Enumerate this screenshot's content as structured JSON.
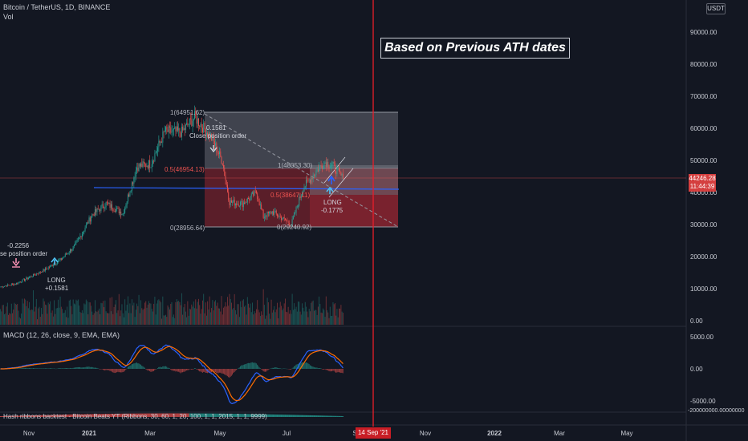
{
  "header": {
    "symbol_line": "Bitcoin / TetherUS, 1D, BINANCE",
    "volume_label": "Vol",
    "currency_badge": "USDT"
  },
  "callout": {
    "text": "Based on Previous ATH dates"
  },
  "price_tag": {
    "price": "44246.28",
    "countdown": "11:44:39",
    "color": "#d43f3f"
  },
  "date_marker": {
    "label": "14 Sep '21",
    "color": "#c81d25"
  },
  "annotations": {
    "left_value": "-0.2256",
    "left_order": "se position order",
    "left_long": "LONG",
    "left_long_value": "+0.1581",
    "mid_value": "0.1581",
    "mid_order": "Close position order",
    "right_long": "LONG",
    "right_long_value": "-0.1775"
  },
  "fib_labels": {
    "left_top": "1(64951.62)",
    "left_mid": "0.5(46954.13)",
    "left_bottom": "0(28956.64)",
    "right_top": "1(48053.30)",
    "right_mid": "0.5(38647.11)",
    "right_bottom": "0(29240.92)"
  },
  "panes": {
    "macd_title": "MACD (12, 26, close, 9, EMA, EMA)",
    "ribbon_title": "Hash ribbons backtest - Bitcoin Beats YT (Ribbons, 30, 60, 1, 20, 100, 1, 1, 2015, 1, 1, 9999)"
  },
  "colors": {
    "background": "#131722",
    "up": "#26a69a",
    "down": "#ef5350",
    "macd_line": "#2962ff",
    "signal_line": "#ff6d00",
    "support_line": "#2962ff",
    "vertical_marker": "#e91e2a"
  },
  "chart_data": {
    "type": "candlestick",
    "x_tick_labels": [
      "Nov",
      "2021",
      "Mar",
      "May",
      "Jul",
      "S",
      "Nov",
      "2022",
      "Mar",
      "May"
    ],
    "price_axis": {
      "ticks": [
        "90000.00",
        "80000.00",
        "70000.00",
        "60000.00",
        "50000.00",
        "40000.00",
        "30000.00",
        "20000.00",
        "10000.00",
        "0.00"
      ],
      "ylim": [
        0,
        95000
      ]
    },
    "macd_axis": {
      "ticks": [
        "5000.00",
        "0.00",
        "-5000.00"
      ]
    },
    "ribbon_axis": {
      "ticks": [
        "-200000000.00000000"
      ]
    },
    "weekly_close": [
      {
        "date": "2020-10-01",
        "close": 10600
      },
      {
        "date": "2020-10-15",
        "close": 11400
      },
      {
        "date": "2020-11-01",
        "close": 13800
      },
      {
        "date": "2020-11-15",
        "close": 16000
      },
      {
        "date": "2020-12-01",
        "close": 19200
      },
      {
        "date": "2020-12-15",
        "close": 23500
      },
      {
        "date": "2021-01-01",
        "close": 33000
      },
      {
        "date": "2021-01-15",
        "close": 36500
      },
      {
        "date": "2021-02-01",
        "close": 33500
      },
      {
        "date": "2021-02-15",
        "close": 48000
      },
      {
        "date": "2021-03-01",
        "close": 49000
      },
      {
        "date": "2021-03-15",
        "close": 59000
      },
      {
        "date": "2021-04-01",
        "close": 58800
      },
      {
        "date": "2021-04-14",
        "close": 63500
      },
      {
        "date": "2021-05-01",
        "close": 57000
      },
      {
        "date": "2021-05-12",
        "close": 49500
      },
      {
        "date": "2021-05-19",
        "close": 37000
      },
      {
        "date": "2021-06-01",
        "close": 36500
      },
      {
        "date": "2021-06-15",
        "close": 40000
      },
      {
        "date": "2021-06-22",
        "close": 32500
      },
      {
        "date": "2021-07-01",
        "close": 34000
      },
      {
        "date": "2021-07-20",
        "close": 30000
      },
      {
        "date": "2021-08-01",
        "close": 41500
      },
      {
        "date": "2021-08-15",
        "close": 47000
      },
      {
        "date": "2021-08-23",
        "close": 49500
      },
      {
        "date": "2021-09-01",
        "close": 48000
      },
      {
        "date": "2021-09-10",
        "close": 44246
      }
    ],
    "fib_levels": [
      {
        "label": "1",
        "value": 64951.62
      },
      {
        "label": "0.5",
        "value": 46954.13
      },
      {
        "label": "0",
        "value": 28956.64
      },
      {
        "label": "1",
        "value": 48053.3
      },
      {
        "label": "0.5",
        "value": 38647.11
      },
      {
        "label": "0",
        "value": 29240.92
      }
    ],
    "support_level": 41500,
    "last_price": 44246.28
  }
}
